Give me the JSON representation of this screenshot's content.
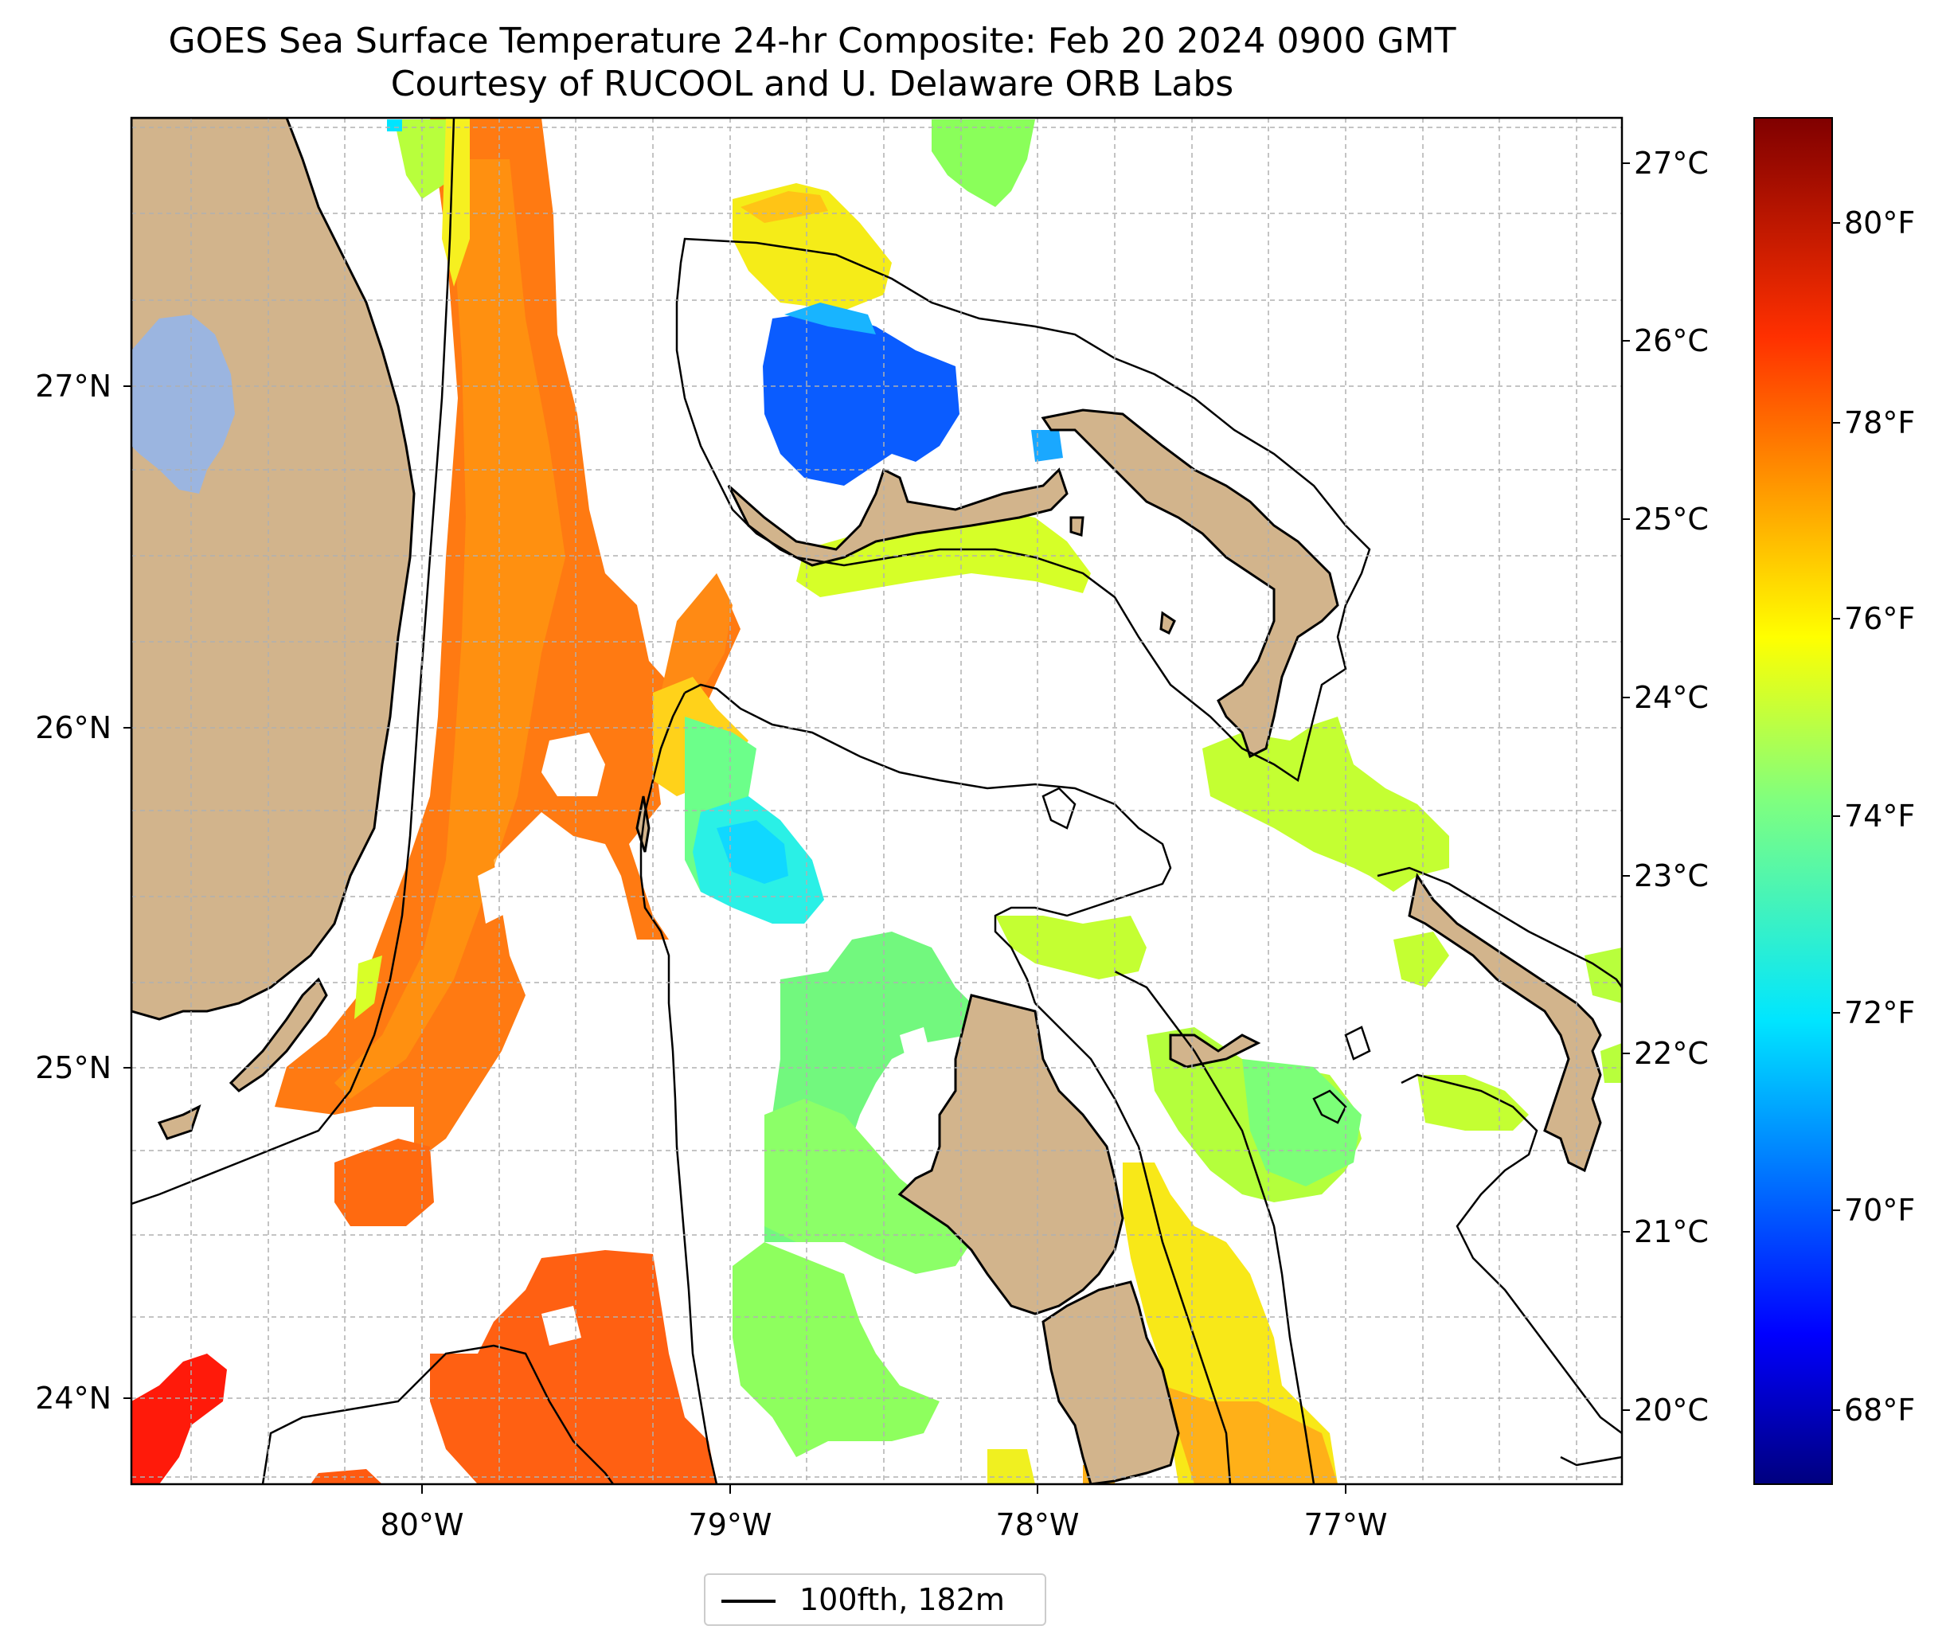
{
  "title": {
    "line1": "GOES Sea Surface Temperature 24-hr Composite: Feb 20 2024 0900 GMT",
    "line2": "Courtesy of RUCOOL and U. Delaware ORB Labs"
  },
  "map": {
    "lon_ticks": [
      "80°W",
      "79°W",
      "78°W",
      "77°W"
    ],
    "lat_ticks": [
      "27°N",
      "26°N",
      "25°N",
      "24°N"
    ],
    "celsius_ticks": [
      "27°C",
      "26°C",
      "25°C",
      "24°C",
      "23°C",
      "22°C",
      "21°C",
      "20°C"
    ],
    "land_color": "#d2b48c",
    "lake_color": "#9bb5e0",
    "contour_color": "#000000",
    "gridline_style": "dashed-gray"
  },
  "colorbar": {
    "colormap": "jet",
    "units": "°F",
    "range_f": [
      67.3,
      81.3
    ],
    "tick_labels": [
      "80°F",
      "78°F",
      "76°F",
      "74°F",
      "72°F",
      "70°F",
      "68°F"
    ]
  },
  "legend": {
    "label": "100fth, 182m",
    "line_color": "#000000"
  }
}
